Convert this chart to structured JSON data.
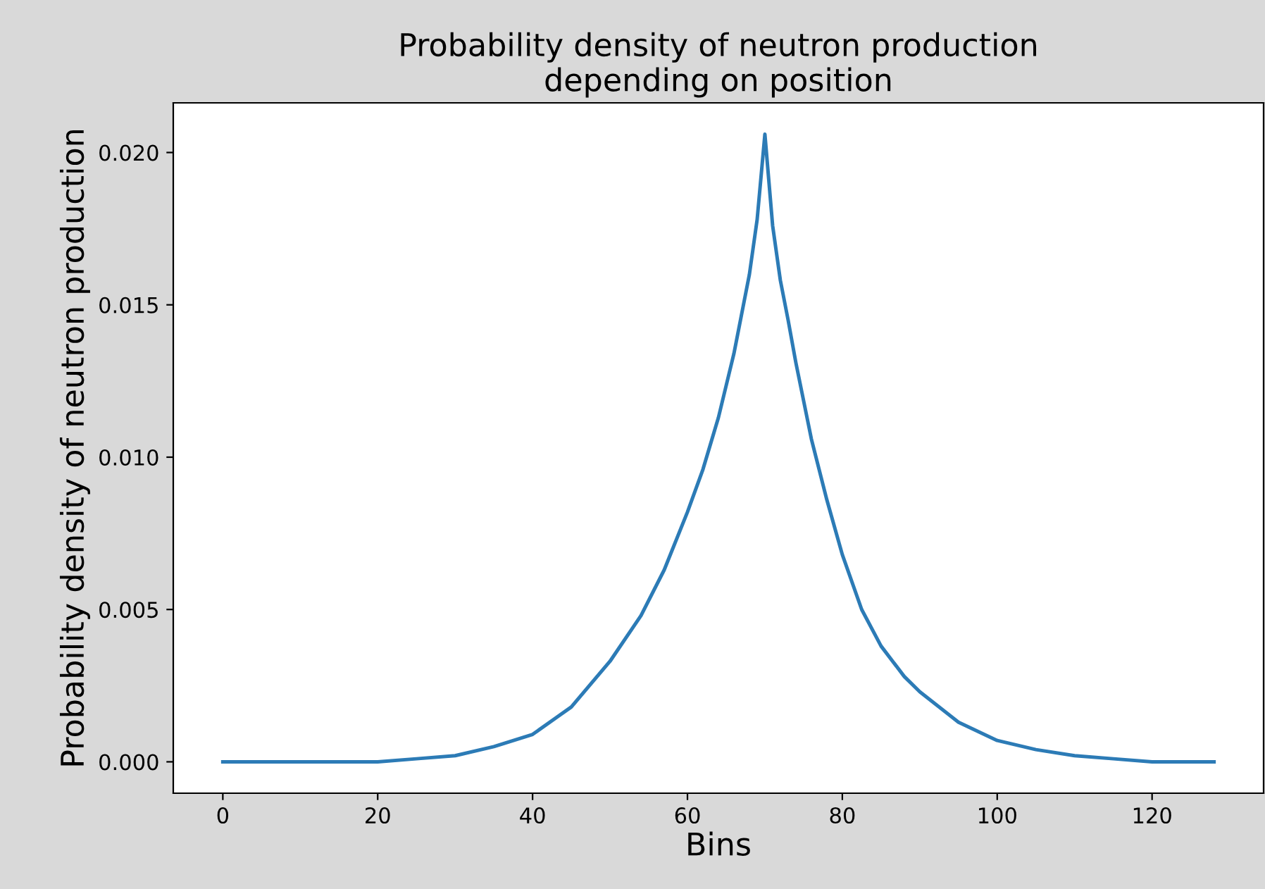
{
  "chart_data": {
    "type": "line",
    "title": "Probability density of neutron production\ndepending on position",
    "xlabel": "Bins",
    "ylabel": "Probability density of neutron production",
    "series": [
      {
        "color": "#2c7bb6",
        "x": [
          0,
          10,
          20,
          25,
          30,
          35,
          40,
          45,
          50,
          54,
          57,
          60,
          62,
          64,
          66,
          67,
          68,
          69,
          70,
          71,
          72,
          73,
          74,
          76,
          78,
          80,
          82.5,
          85,
          88,
          90,
          95,
          100,
          105,
          110,
          115,
          120,
          128
        ],
        "values": [
          0,
          0,
          0,
          0.0001,
          0.0002,
          0.0005,
          0.0009,
          0.0018,
          0.0033,
          0.0048,
          0.0063,
          0.0082,
          0.0096,
          0.0113,
          0.0134,
          0.0147,
          0.016,
          0.0178,
          0.0206,
          0.0176,
          0.0158,
          0.0145,
          0.0131,
          0.0106,
          0.0086,
          0.0068,
          0.005,
          0.0038,
          0.0028,
          0.0023,
          0.0013,
          0.0007,
          0.0004,
          0.0002,
          0.0001,
          0,
          0
        ]
      }
    ],
    "xlim": [
      -6.4,
      134.4
    ],
    "ylim": [
      -0.00103,
      0.02163
    ],
    "xticks": [
      0,
      20,
      40,
      60,
      80,
      100,
      120
    ],
    "yticks": [
      {
        "value": 0,
        "label": "0.000"
      },
      {
        "value": 0.005,
        "label": "0.005"
      },
      {
        "value": 0.01,
        "label": "0.010"
      },
      {
        "value": 0.015,
        "label": "0.015"
      },
      {
        "value": 0.02,
        "label": "0.020"
      }
    ],
    "grid": false,
    "marker": "none",
    "line_style": "solid"
  }
}
